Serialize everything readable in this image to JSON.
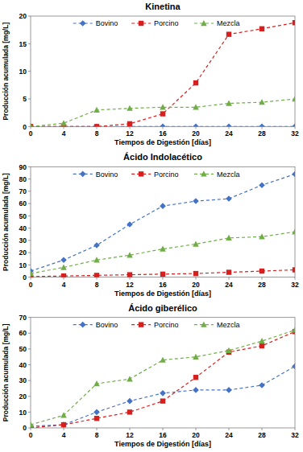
{
  "chart_data": [
    {
      "type": "line",
      "title": "Kinetina",
      "x_label": "Tiempos de Digestión [días]",
      "y_label": "Producción acumulada [mg/L]",
      "x": [
        0,
        4,
        8,
        12,
        16,
        20,
        24,
        28,
        32
      ],
      "xlim": [
        0,
        32
      ],
      "xticks": [
        0,
        4,
        8,
        12,
        16,
        20,
        24,
        28,
        32
      ],
      "ylim": [
        0,
        20
      ],
      "yticks": [
        0,
        5,
        10,
        15,
        20
      ],
      "grid": false,
      "legend": "top",
      "series": [
        {
          "name": "Bovino",
          "color": "#4472c4",
          "marker": "diamond",
          "line_style": "dashed",
          "values": [
            0,
            0,
            0,
            0,
            0,
            0,
            0,
            0,
            0
          ]
        },
        {
          "name": "Porcino",
          "color": "#d62020",
          "marker": "square",
          "line_style": "dashed",
          "values": [
            0,
            0,
            0,
            0.5,
            2.3,
            7.9,
            16.7,
            17.7,
            18.8
          ]
        },
        {
          "name": "Mezcla",
          "color": "#70ad47",
          "marker": "triangle",
          "line_style": "dashed",
          "values": [
            0,
            0.6,
            3.0,
            3.3,
            3.5,
            3.5,
            4.2,
            4.4,
            5.0
          ]
        }
      ]
    },
    {
      "type": "line",
      "title": "Ácido Indolacético",
      "x_label": "Tiempos de Digestión [días]",
      "y_label": "Producción acumulada [mg/L]",
      "x": [
        0,
        4,
        8,
        12,
        16,
        20,
        24,
        28,
        32
      ],
      "xlim": [
        0,
        32
      ],
      "xticks": [
        0,
        4,
        8,
        12,
        16,
        20,
        24,
        28,
        32
      ],
      "ylim": [
        0,
        90
      ],
      "yticks": [
        0,
        10,
        20,
        30,
        40,
        50,
        60,
        70,
        80,
        90
      ],
      "grid": false,
      "legend": "top",
      "series": [
        {
          "name": "Bovino",
          "color": "#4472c4",
          "marker": "diamond",
          "line_style": "dashed",
          "values": [
            5,
            14,
            26,
            43,
            58,
            62,
            64,
            75,
            84
          ]
        },
        {
          "name": "Porcino",
          "color": "#d62020",
          "marker": "square",
          "line_style": "dashed",
          "values": [
            0.5,
            1,
            1.5,
            2,
            2.5,
            3,
            4,
            5,
            6
          ]
        },
        {
          "name": "Mezcla",
          "color": "#70ad47",
          "marker": "triangle",
          "line_style": "dashed",
          "values": [
            3,
            8,
            14,
            18,
            23,
            27,
            32,
            33,
            37
          ]
        }
      ]
    },
    {
      "type": "line",
      "title": "Ácido giberélico",
      "x_label": "Tiempos de Digestión [días]",
      "y_label": "Producción acumulada [mg/L]",
      "x": [
        0,
        4,
        8,
        12,
        16,
        20,
        24,
        28,
        32
      ],
      "xlim": [
        0,
        32
      ],
      "xticks": [
        0,
        4,
        8,
        12,
        16,
        20,
        24,
        28,
        32
      ],
      "ylim": [
        0,
        70
      ],
      "yticks": [
        0,
        10,
        20,
        30,
        40,
        50,
        60,
        70
      ],
      "grid": false,
      "legend": "top",
      "series": [
        {
          "name": "Bovino",
          "color": "#4472c4",
          "marker": "diamond",
          "line_style": "dashed",
          "values": [
            1,
            2,
            10,
            17,
            22,
            24,
            24,
            27,
            39
          ]
        },
        {
          "name": "Porcino",
          "color": "#d62020",
          "marker": "square",
          "line_style": "dashed",
          "values": [
            0,
            2,
            6,
            10,
            17,
            32,
            48,
            52,
            61
          ]
        },
        {
          "name": "Mezcla",
          "color": "#70ad47",
          "marker": "triangle",
          "line_style": "dashed",
          "values": [
            2,
            8,
            28,
            31,
            43,
            45,
            49,
            55,
            62
          ]
        }
      ]
    }
  ]
}
